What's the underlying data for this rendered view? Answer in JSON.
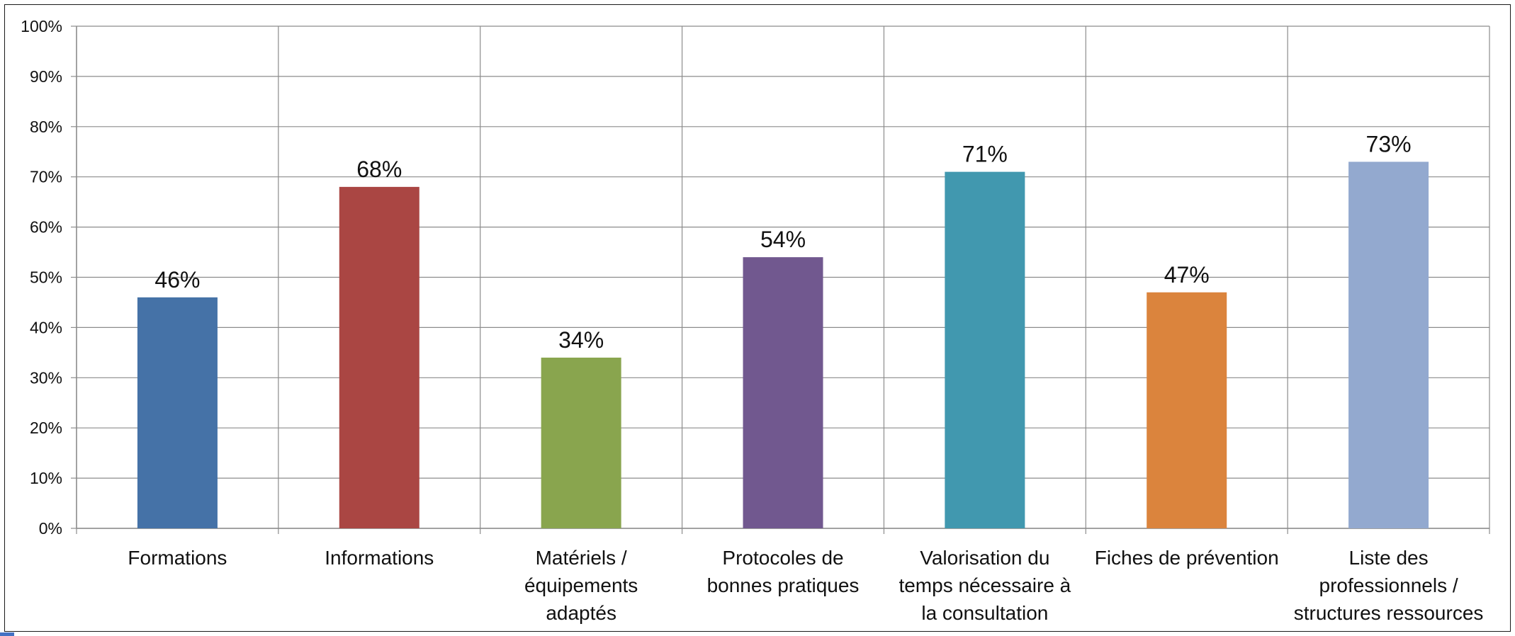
{
  "chart_data": {
    "type": "bar",
    "categories": [
      [
        "Formations"
      ],
      [
        "Informations"
      ],
      [
        "Matériels /",
        "équipements",
        "adaptés"
      ],
      [
        "Protocoles de",
        "bonnes pratiques"
      ],
      [
        "Valorisation du",
        "temps nécessaire à",
        "la consultation"
      ],
      [
        "Fiches de prévention"
      ],
      [
        "Liste des",
        "professionnels /",
        "structures ressources"
      ]
    ],
    "values": [
      46,
      68,
      34,
      54,
      71,
      47,
      73
    ],
    "value_labels": [
      "46%",
      "68%",
      "34%",
      "54%",
      "71%",
      "47%",
      "73%"
    ],
    "colors": [
      "#4572a7",
      "#aa4643",
      "#89a54e",
      "#71588f",
      "#4198af",
      "#db843d",
      "#93a9cf"
    ],
    "ylim": [
      0,
      100
    ],
    "yticks": [
      "0%",
      "10%",
      "20%",
      "30%",
      "40%",
      "50%",
      "60%",
      "70%",
      "80%",
      "90%",
      "100%"
    ],
    "grid": true,
    "legend": "none"
  }
}
